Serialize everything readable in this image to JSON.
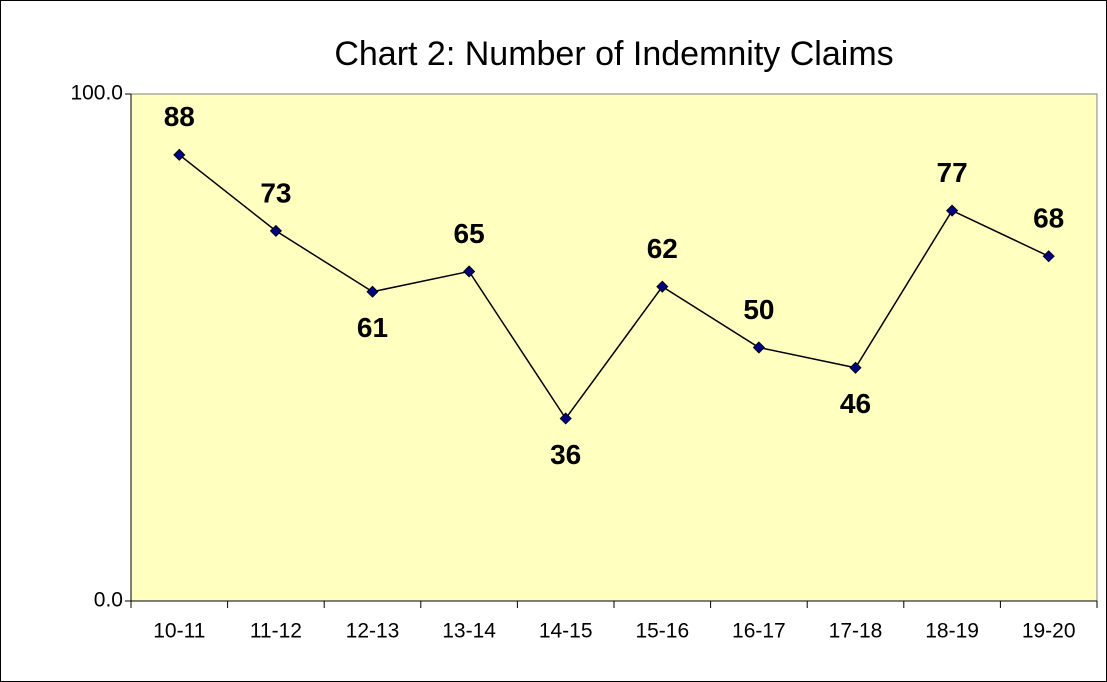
{
  "chart_data": {
    "type": "line",
    "title": "Chart 2: Number of Indemnity Claims",
    "categories": [
      "10-11",
      "11-12",
      "12-13",
      "13-14",
      "14-15",
      "15-16",
      "16-17",
      "17-18",
      "18-19",
      "19-20"
    ],
    "series": [
      {
        "name": "Number of Indemnity Claims",
        "color": "#000080",
        "values": [
          88,
          73,
          61,
          65,
          36,
          62,
          50,
          46,
          77,
          68
        ]
      }
    ],
    "ylim": [
      0,
      100
    ],
    "yticks": [
      {
        "value": 0,
        "label": "0.0"
      },
      {
        "value": 100,
        "label": "100.0"
      }
    ],
    "plot_background": "#ffffc0"
  }
}
